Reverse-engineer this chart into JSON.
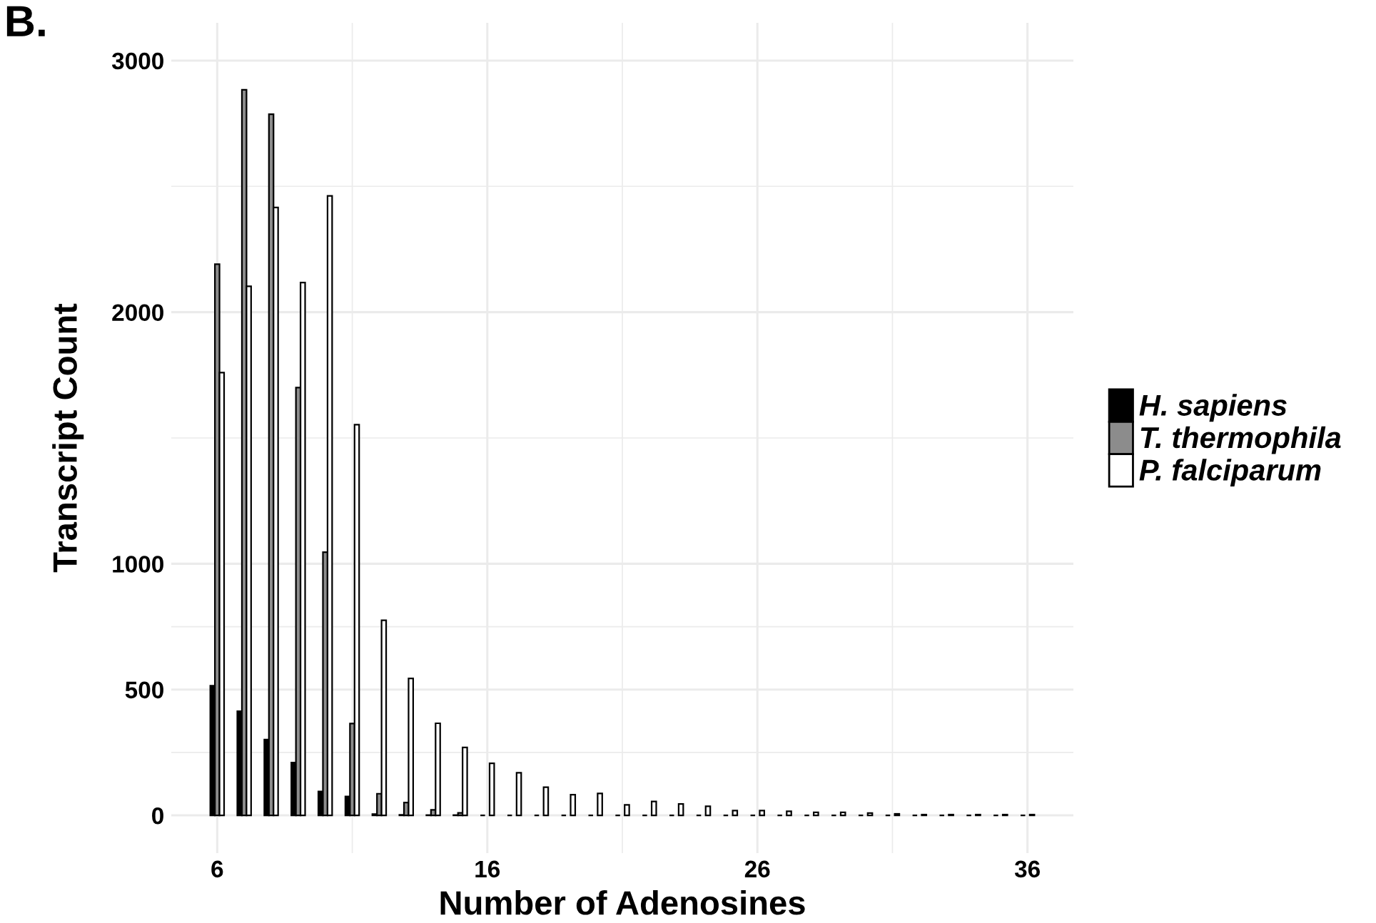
{
  "chart_data": {
    "type": "bar",
    "title": "B.",
    "xlabel": "Number of Adenosines",
    "ylabel": "Transcript Count",
    "x": [
      6,
      7,
      8,
      9,
      10,
      11,
      12,
      13,
      14,
      15,
      16,
      17,
      18,
      19,
      20,
      21,
      22,
      23,
      24,
      25,
      26,
      27,
      28,
      29,
      30,
      31,
      32,
      33,
      34,
      35,
      36
    ],
    "series": [
      {
        "name": "H. sapiens",
        "color": "#000000",
        "values": [
          515,
          414,
          301,
          210,
          95,
          75,
          5,
          2,
          1,
          1,
          0,
          0,
          0,
          0,
          0,
          0,
          0,
          0,
          0,
          0,
          0,
          0,
          0,
          0,
          0,
          0,
          0,
          0,
          0,
          0,
          0
        ]
      },
      {
        "name": "T. thermophila",
        "color": "#8c8c8c",
        "values": [
          2191,
          2884,
          2787,
          1700,
          1046,
          365,
          86,
          51,
          22,
          10,
          null,
          null,
          null,
          null,
          null,
          null,
          null,
          null,
          null,
          null,
          null,
          null,
          null,
          null,
          null,
          null,
          null,
          null,
          null,
          null,
          null
        ]
      },
      {
        "name": "P. falciparum",
        "color": "#ffffff",
        "values": [
          1760,
          2103,
          2416,
          2118,
          2462,
          1553,
          775,
          544,
          366,
          270,
          207,
          169,
          112,
          82,
          87,
          42,
          55,
          45,
          36,
          19,
          19,
          16,
          12,
          12,
          9,
          6,
          3,
          3,
          3,
          3,
          3
        ]
      }
    ],
    "xlim": [
      4.3,
      37.7
    ],
    "xticks": [
      6,
      {
        "value": 11,
        "label": null
      },
      16,
      {
        "value": 21,
        "label": null
      },
      26,
      {
        "value": 31,
        "label": null
      },
      36
    ],
    "ylim": [
      -150,
      3150
    ],
    "yticks": [
      0,
      {
        "value": 250,
        "label": null
      },
      500,
      {
        "value": 750,
        "label": null
      },
      1000,
      {
        "value": 1500,
        "label": null
      },
      2000,
      {
        "value": 2500,
        "label": null
      },
      3000
    ],
    "grid": true,
    "legend": "right"
  }
}
